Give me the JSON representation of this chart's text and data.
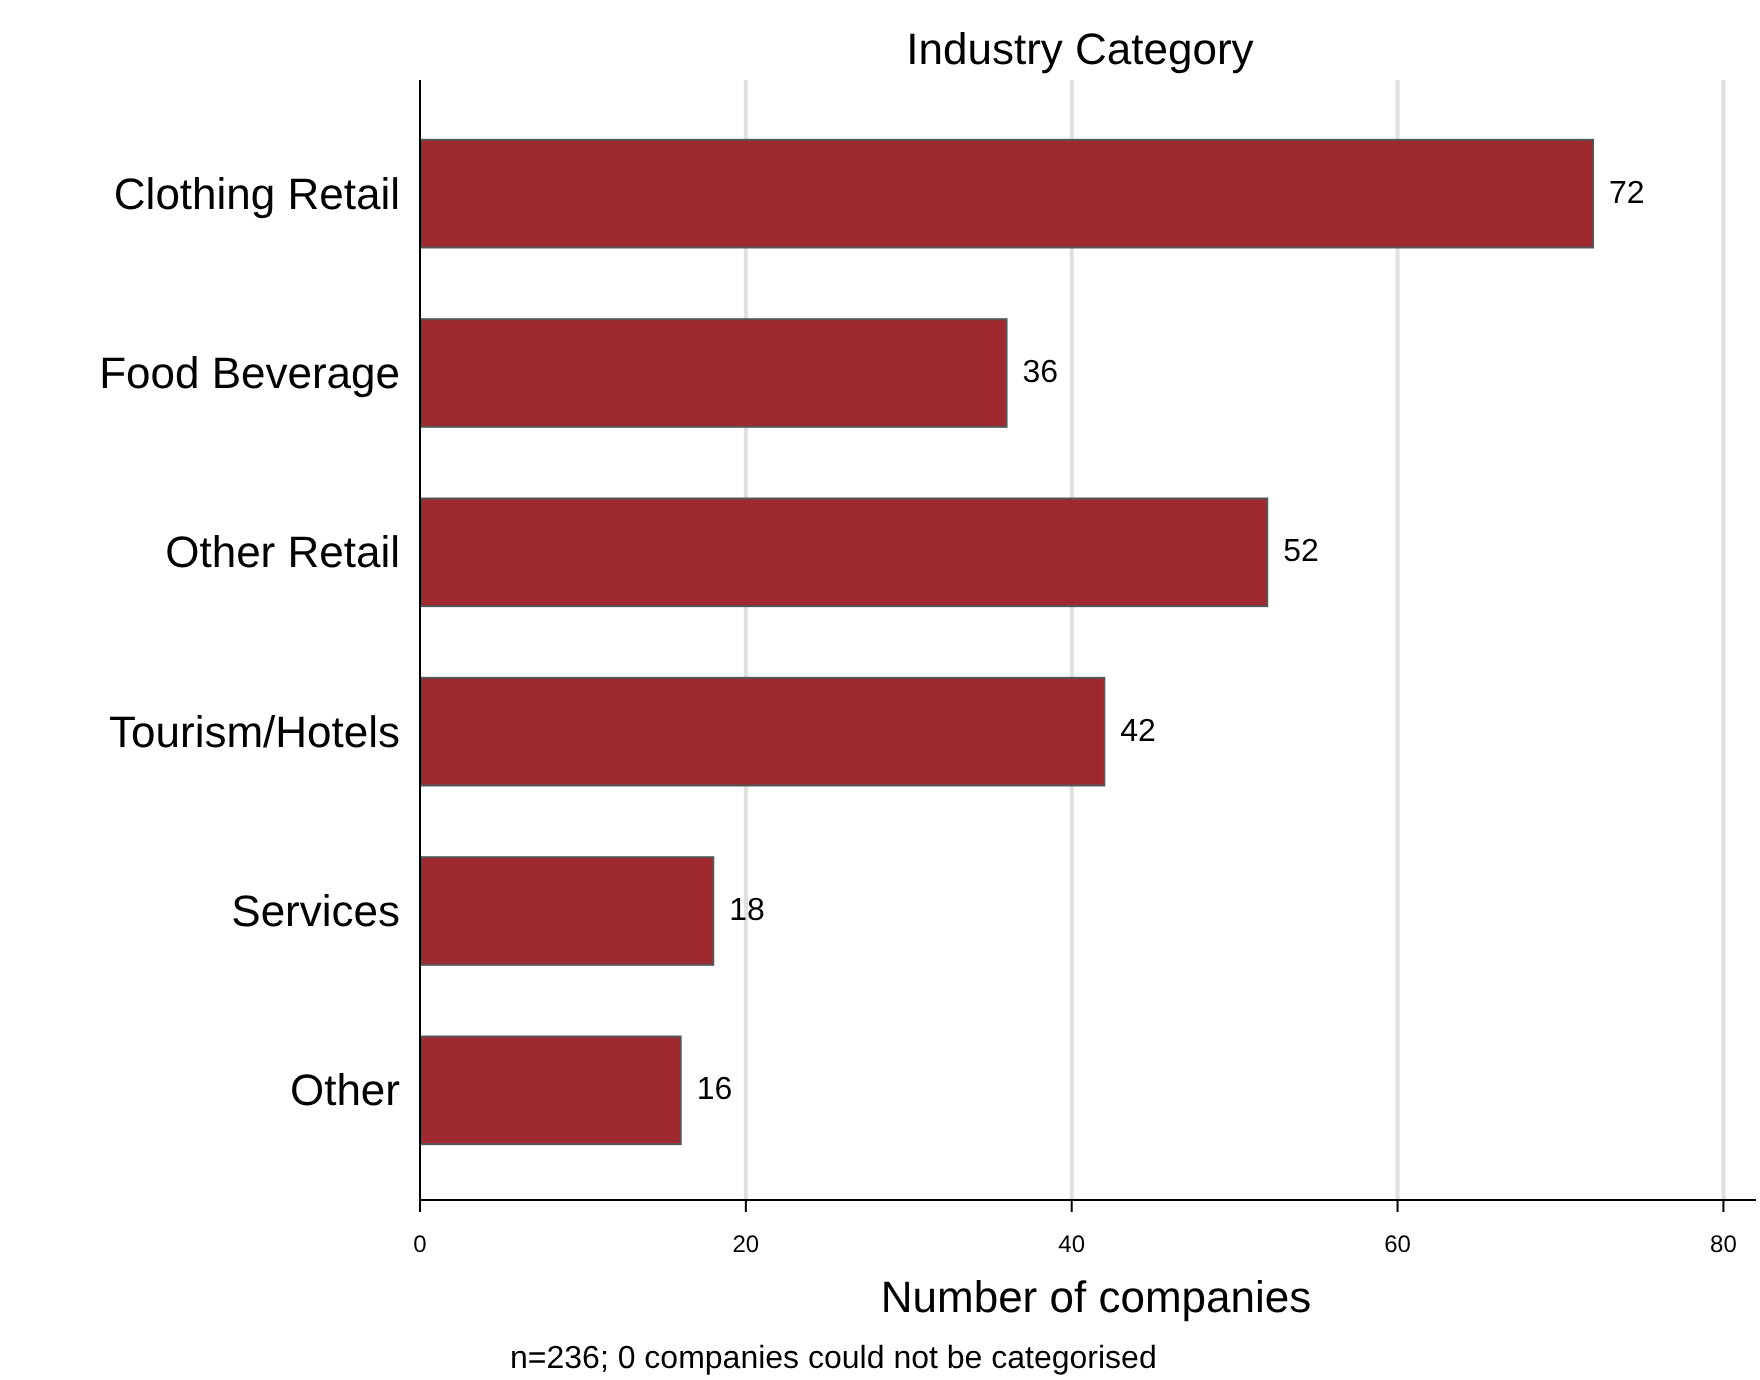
{
  "chart_data": {
    "type": "bar",
    "orientation": "horizontal",
    "title": "Industry Category",
    "xlabel": "Number of companies",
    "categories": [
      "Clothing Retail",
      "Food Beverage",
      "Other Retail",
      "Tourism/Hotels",
      "Services",
      "Other"
    ],
    "values": [
      72,
      36,
      52,
      42,
      18,
      16
    ],
    "color": "#9e2a2f",
    "xlim": [
      0,
      82
    ],
    "xticks": [
      0,
      20,
      40,
      60,
      80
    ],
    "grid": "x",
    "data_labels": true,
    "annotations": [
      "n=236; 0 companies could not be categorised"
    ]
  }
}
